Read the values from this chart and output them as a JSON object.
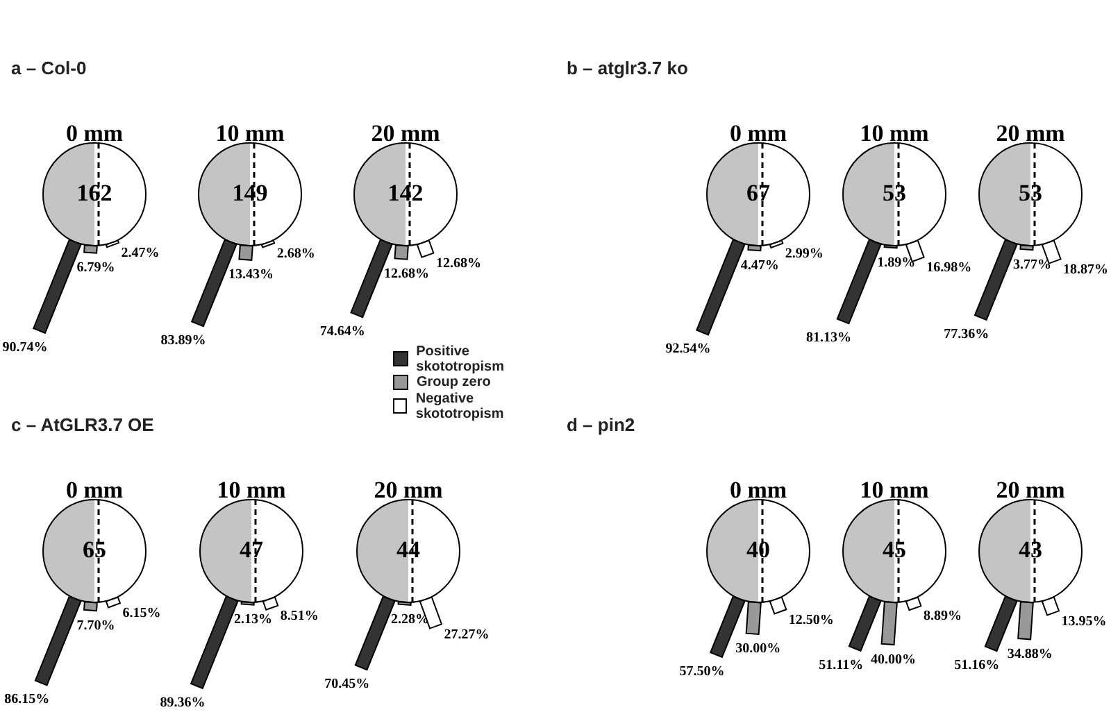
{
  "chart_data": [
    {
      "type": "other",
      "title": "a – Col-0",
      "categories": [
        "0 mm",
        "10 mm",
        "20 mm"
      ],
      "legend": "bottom right",
      "series": [
        {
          "name": "Positive skototropism",
          "color": "#333333",
          "values": [
            90.74,
            83.89,
            74.64
          ],
          "value_labels": [
            "90.74%",
            "83.89%",
            "74.64%"
          ]
        },
        {
          "name": "Group zero",
          "color": "#999999",
          "values": [
            6.79,
            13.43,
            12.68
          ],
          "value_labels": [
            "6.79%",
            "13.43%",
            "12.68%"
          ]
        },
        {
          "name": "Negative skototropism",
          "color": "#ffffff",
          "values": [
            2.47,
            2.68,
            12.68
          ],
          "value_labels": [
            "2.47%",
            "2.68%",
            "12.68%"
          ]
        }
      ],
      "annotations": [
        "162",
        "149",
        "142"
      ]
    },
    {
      "type": "other",
      "title": "b – atglr3.7 ko",
      "categories": [
        "0 mm",
        "10 mm",
        "20 mm"
      ],
      "series": [
        {
          "color": "#333333",
          "values": [
            92.54,
            81.13,
            77.36
          ],
          "value_labels": [
            "92.54%",
            "81.13%",
            "77.36%"
          ]
        },
        {
          "color": "#999999",
          "values": [
            4.47,
            1.89,
            3.77
          ],
          "value_labels": [
            "4.47%",
            "1.89%",
            "3.77%"
          ]
        },
        {
          "color": "#ffffff",
          "values": [
            2.99,
            16.98,
            18.87
          ],
          "value_labels": [
            "2.99%",
            "16.98%",
            "18.87%"
          ]
        }
      ],
      "annotations": [
        "67",
        "53",
        "53"
      ]
    },
    {
      "type": "other",
      "title": "c – AtGLR3.7 OE",
      "categories": [
        "0 mm",
        "10 mm",
        "20 mm"
      ],
      "series": [
        {
          "color": "#333333",
          "values": [
            86.15,
            89.36,
            70.45
          ],
          "value_labels": [
            "86.15%",
            "89.36%",
            "70.45%"
          ]
        },
        {
          "color": "#999999",
          "values": [
            7.7,
            2.13,
            2.28
          ],
          "value_labels": [
            "7.70%",
            "2.13%",
            "2.28%"
          ]
        },
        {
          "color": "#ffffff",
          "values": [
            6.15,
            8.51,
            27.27
          ],
          "value_labels": [
            "6.15%",
            "8.51%",
            "27.27%"
          ]
        }
      ],
      "annotations": [
        "65",
        "47",
        "44"
      ]
    },
    {
      "type": "other",
      "title": "d – pin2",
      "categories": [
        "0 mm",
        "10 mm",
        "20 mm"
      ],
      "series": [
        {
          "color": "#333333",
          "values": [
            57.5,
            51.11,
            51.16
          ],
          "value_labels": [
            "57.50%",
            "51.11%",
            "51.16%"
          ]
        },
        {
          "color": "#999999",
          "values": [
            30.0,
            40.0,
            34.88
          ],
          "value_labels": [
            "30.00%",
            "40.00%",
            "34.88%"
          ]
        },
        {
          "color": "#ffffff",
          "values": [
            12.5,
            8.89,
            13.95
          ],
          "value_labels": [
            "12.50%",
            "8.89%",
            "13.95%"
          ]
        }
      ],
      "annotations": [
        "40",
        "45",
        "43"
      ]
    }
  ]
}
